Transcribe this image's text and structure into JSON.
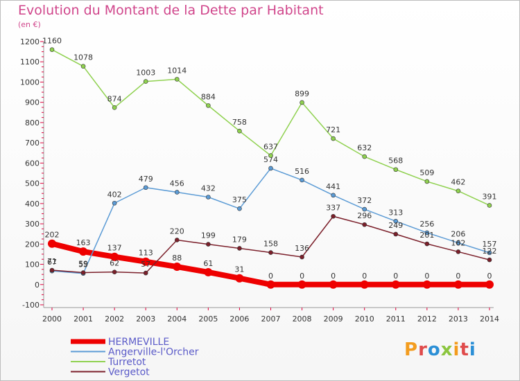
{
  "title": "Evolution du Montant de la Dette par Habitant",
  "subtitle": "(en €)",
  "logo": {
    "text": "Proxiti",
    "colors": [
      "#f39c1e",
      "#e04b4b",
      "#2b8fd6",
      "#8cc63f",
      "#f39c1e",
      "#e04b4b",
      "#2b8fd6"
    ]
  },
  "chart_data": {
    "type": "line",
    "x": [
      "2000",
      "2001",
      "2002",
      "2003",
      "2004",
      "2005",
      "2006",
      "2007",
      "2008",
      "2009",
      "2010",
      "2011",
      "2012",
      "2013",
      "2014"
    ],
    "ylim": [
      -100,
      1200
    ],
    "yticks": [
      -100,
      0,
      100,
      200,
      300,
      400,
      500,
      600,
      700,
      800,
      900,
      1000,
      1100,
      1200
    ],
    "grid": false,
    "legend_position": "bottom-left",
    "series": [
      {
        "name": "HERMEVILLE",
        "color": "#ee0000",
        "bold": true,
        "values": [
          202,
          163,
          137,
          113,
          88,
          61,
          31,
          0,
          0,
          0,
          0,
          0,
          0,
          0,
          0
        ]
      },
      {
        "name": "Angerville-l'Orcher",
        "color": "#5b9bd5",
        "bold": false,
        "values": [
          67,
          55,
          402,
          479,
          456,
          432,
          375,
          574,
          516,
          441,
          372,
          313,
          256,
          206,
          157
        ]
      },
      {
        "name": "Turretot",
        "color": "#8fd14f",
        "bold": false,
        "values": [
          1160,
          1078,
          874,
          1003,
          1014,
          884,
          758,
          637,
          899,
          721,
          632,
          568,
          509,
          462,
          391
        ]
      },
      {
        "name": "Vergetot",
        "color": "#7b1f2a",
        "bold": false,
        "values": [
          71,
          59,
          62,
          57,
          220,
          199,
          179,
          158,
          136,
          337,
          296,
          249,
          201,
          162,
          122
        ]
      }
    ]
  }
}
